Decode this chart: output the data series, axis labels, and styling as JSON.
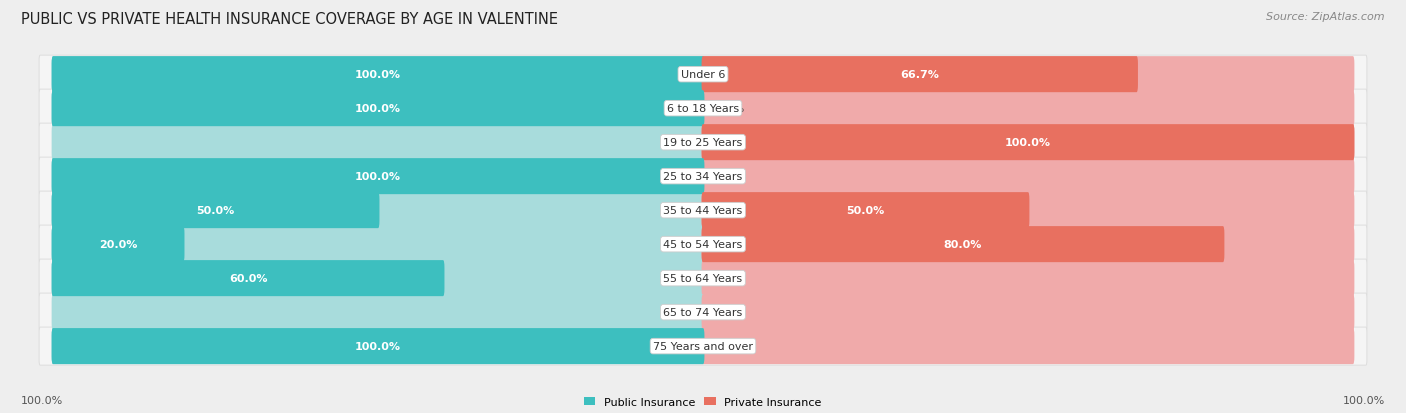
{
  "title": "PUBLIC VS PRIVATE HEALTH INSURANCE COVERAGE BY AGE IN VALENTINE",
  "source": "Source: ZipAtlas.com",
  "categories": [
    "Under 6",
    "6 to 18 Years",
    "19 to 25 Years",
    "25 to 34 Years",
    "35 to 44 Years",
    "45 to 54 Years",
    "55 to 64 Years",
    "65 to 74 Years",
    "75 Years and over"
  ],
  "public": [
    100.0,
    100.0,
    0.0,
    100.0,
    50.0,
    20.0,
    60.0,
    0.0,
    100.0
  ],
  "private": [
    66.7,
    0.0,
    100.0,
    0.0,
    50.0,
    80.0,
    0.0,
    0.0,
    0.0
  ],
  "public_color": "#3dbfbf",
  "private_color": "#e87060",
  "public_light_color": "#a8dcdc",
  "private_light_color": "#f0aaaa",
  "row_bg_color": "#f5f5f5",
  "row_border_color": "#dddddd",
  "bg_color": "#eeeeee",
  "legend_public": "Public Insurance",
  "legend_private": "Private Insurance",
  "axis_label_left": "100.0%",
  "axis_label_right": "100.0%",
  "title_fontsize": 10.5,
  "label_fontsize": 8,
  "source_fontsize": 8,
  "stub_size": 8.0
}
